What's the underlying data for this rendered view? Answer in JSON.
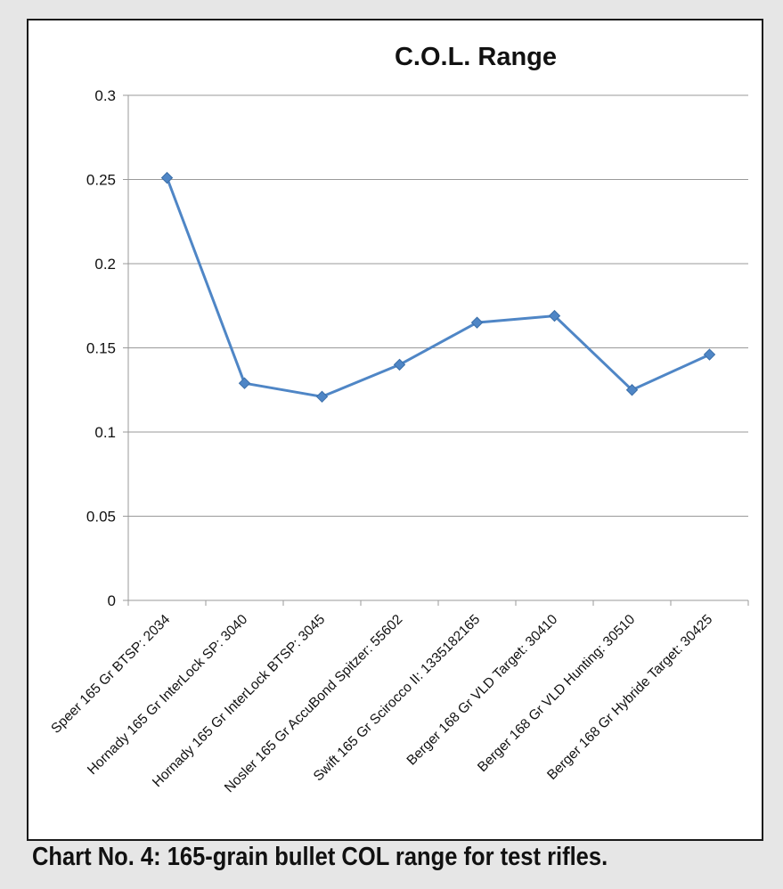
{
  "caption": "Chart No. 4: 165-grain bullet COL range for test rifles.",
  "colors": {
    "page_background": "#e6e6e6",
    "series_line": "#4f86c6",
    "gridline": "#9a9a9a",
    "frame": "#1a1a1a"
  },
  "chart_data": {
    "type": "line",
    "title": "C.O.L. Range",
    "xlabel": "",
    "ylabel": "",
    "categories": [
      "Speer 165 Gr BTSP: 2034",
      "Hornady 165 Gr InterLock SP: 3040",
      "Hornady 165 Gr InterLock BTSP: 3045",
      "Nosler 165 Gr AccuBond Spitzer: 55602",
      "Swift 165 Gr Scirocco II: 1335182165",
      "Berger 168 Gr VLD Target: 30410",
      "Berger 168 Gr VLD Hunting: 30510",
      "Berger 168 Gr Hybride Target: 30425"
    ],
    "series": [
      {
        "values": [
          0.251,
          0.129,
          0.121,
          0.14,
          0.165,
          0.169,
          0.125,
          0.146
        ]
      }
    ],
    "ylim": [
      0,
      0.3
    ],
    "yticks": [
      "0",
      "0.05",
      "0.1",
      "0.15",
      "0.2",
      "0.25",
      "0.3"
    ],
    "grid": true,
    "legend": "none",
    "marker": "diamond"
  }
}
